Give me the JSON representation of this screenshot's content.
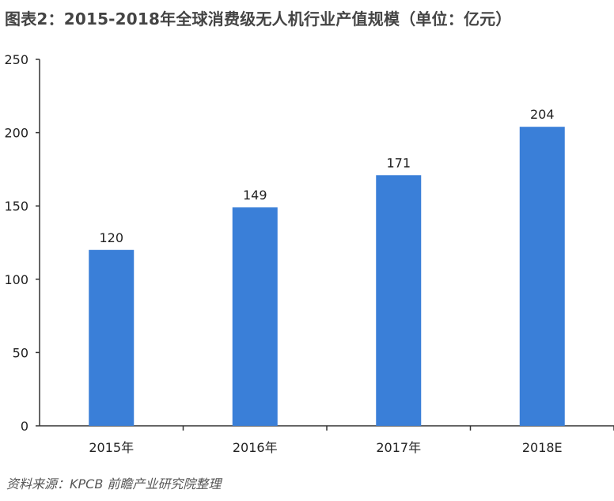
{
  "title": "图表2：2015-2018年全球消费级无人机行业产值规模（单位：亿元）",
  "source": "资料来源：KPCB 前瞻产业研究院整理",
  "watermark": "前瞻产业研究院",
  "chart_data": {
    "type": "bar",
    "title": "图表2：2015-2018年全球消费级无人机行业产值规模（单位：亿元）",
    "categories": [
      "2015年",
      "2016年",
      "2017年",
      "2018E"
    ],
    "values": [
      120,
      149,
      171,
      204
    ],
    "data_labels": [
      "120",
      "149",
      "171",
      "204"
    ],
    "ylim": [
      0,
      250
    ],
    "yticks": [
      0,
      50,
      100,
      150,
      200,
      250
    ],
    "xlabel": "",
    "ylabel": "",
    "grid": false,
    "bar_color": "#3a7fd8"
  }
}
